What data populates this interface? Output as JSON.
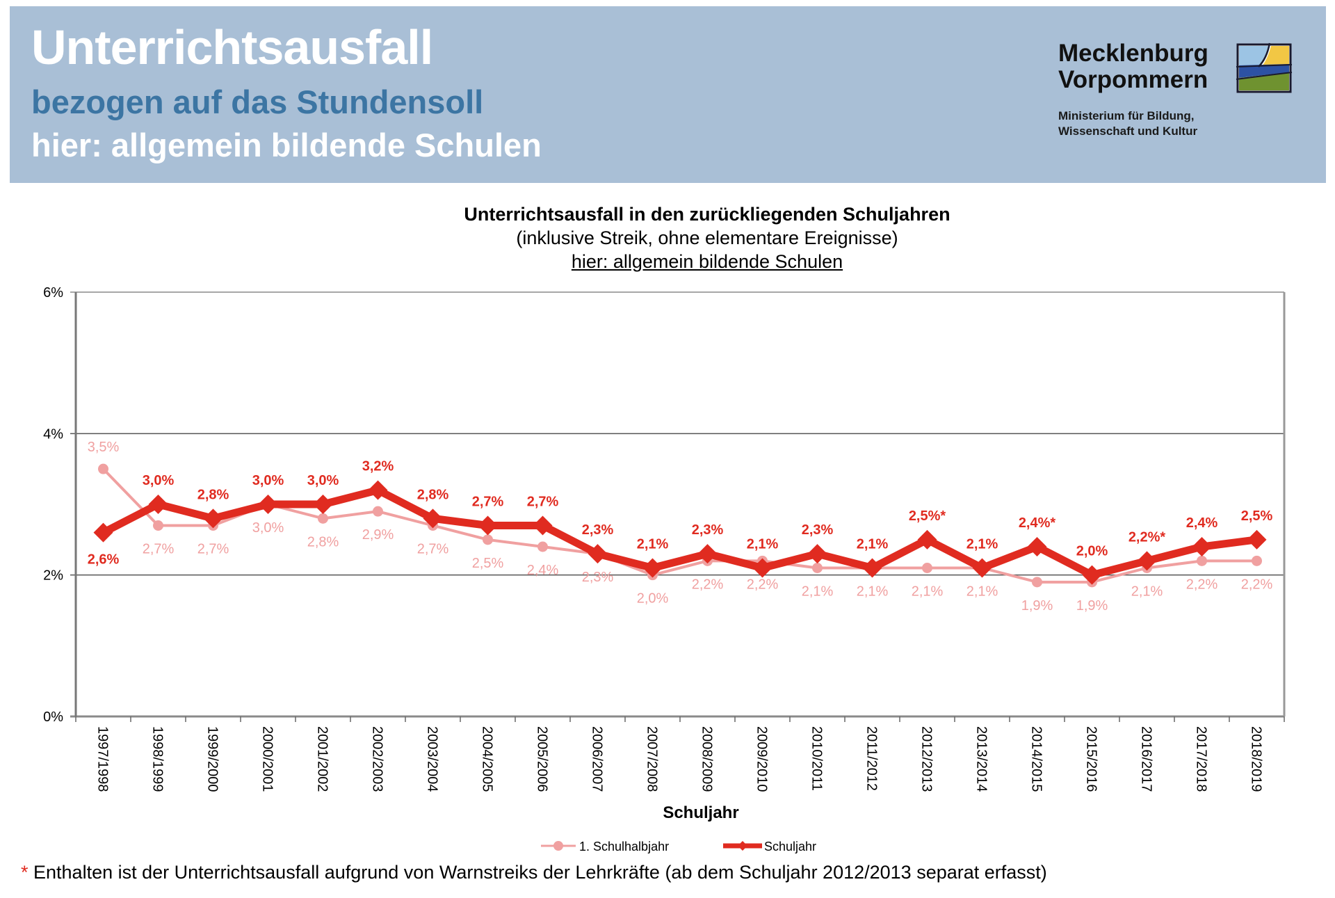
{
  "header": {
    "title": "Unterrichtsausfall",
    "subtitle1": "bezogen auf das Stundensoll",
    "subtitle2": "hier: allgemein bildende Schulen"
  },
  "logo": {
    "line1": "Mecklenburg",
    "line2": "Vorpommern",
    "ministry1": "Ministerium für Bildung,",
    "ministry2": "Wissenschaft und Kultur",
    "icon": "state-landscape-emblem"
  },
  "colors": {
    "header_bg": "#a9bfd6",
    "subtitle_blue": "#3c75a3",
    "series_main": "#e02b20",
    "series_light": "#f0a0a0",
    "gridline": "#555555"
  },
  "chart_data": {
    "type": "line",
    "title": "Unterrichtsausfall in den zurückliegenden Schuljahren",
    "subtitle": "(inklusive Streik,  ohne elementare Ereignisse)",
    "subtitle2": "hier: allgemein bildende Schulen",
    "xlabel": "Schuljahr",
    "ylabel": "",
    "ylim": [
      0,
      6
    ],
    "yticks": [
      "0%",
      "2%",
      "4%",
      "6%"
    ],
    "ytick_values": [
      0,
      2,
      4,
      6
    ],
    "grid": true,
    "legend_position": "bottom-center",
    "categories": [
      "1997/1998",
      "1998/1999",
      "1999/2000",
      "2000/2001",
      "2001/2002",
      "2002/2003",
      "2003/2004",
      "2004/2005",
      "2005/2006",
      "2006/2007",
      "2007/2008",
      "2008/2009",
      "2009/2010",
      "2010/2011",
      "2011/2012",
      "2012/2013",
      "2013/2014",
      "2014/2015",
      "2015/2016",
      "2016/2017",
      "2017/2018",
      "2018/2019"
    ],
    "series": [
      {
        "name": "1. Schulhalbjahr",
        "marker": "circle",
        "values": [
          3.5,
          2.7,
          2.7,
          3.0,
          2.8,
          2.9,
          2.7,
          2.5,
          2.4,
          2.3,
          2.0,
          2.2,
          2.2,
          2.1,
          2.1,
          2.1,
          2.1,
          1.9,
          1.9,
          2.1,
          2.2,
          2.2
        ],
        "labels": [
          "3,5%",
          "2,7%",
          "2,7%",
          "3,0%",
          "2,8%",
          "2,9%",
          "2,7%",
          "2,5%",
          "2,4%",
          "2,3%",
          "2,0%",
          "2,2%",
          "2,2%",
          "2,1%",
          "2,1%",
          "2,1%",
          "2,1%",
          "1,9%",
          "1,9%",
          "2,1%",
          "2,2%",
          "2,2%"
        ]
      },
      {
        "name": "Schuljahr",
        "marker": "diamond",
        "values": [
          2.6,
          3.0,
          2.8,
          3.0,
          3.0,
          3.2,
          2.8,
          2.7,
          2.7,
          2.3,
          2.1,
          2.3,
          2.1,
          2.3,
          2.1,
          2.5,
          2.1,
          2.4,
          2.0,
          2.2,
          2.4,
          2.5
        ],
        "labels": [
          "2,6%",
          "3,0%",
          "2,8%",
          "3,0%",
          "3,0%",
          "3,2%",
          "2,8%",
          "2,7%",
          "2,7%",
          "2,3%",
          "2,1%",
          "2,3%",
          "2,1%",
          "2,3%",
          "2,1%",
          "2,5%*",
          "2,1%",
          "2,4%*",
          "2,0%",
          "2,2%*",
          "2,4%",
          "2,5%"
        ]
      }
    ]
  },
  "footnote": {
    "star": "*",
    "text": " Enthalten ist der Unterrichtsausfall aufgrund von Warnstreiks der Lehrkräfte (ab dem Schuljahr 2012/2013 separat erfasst)"
  }
}
